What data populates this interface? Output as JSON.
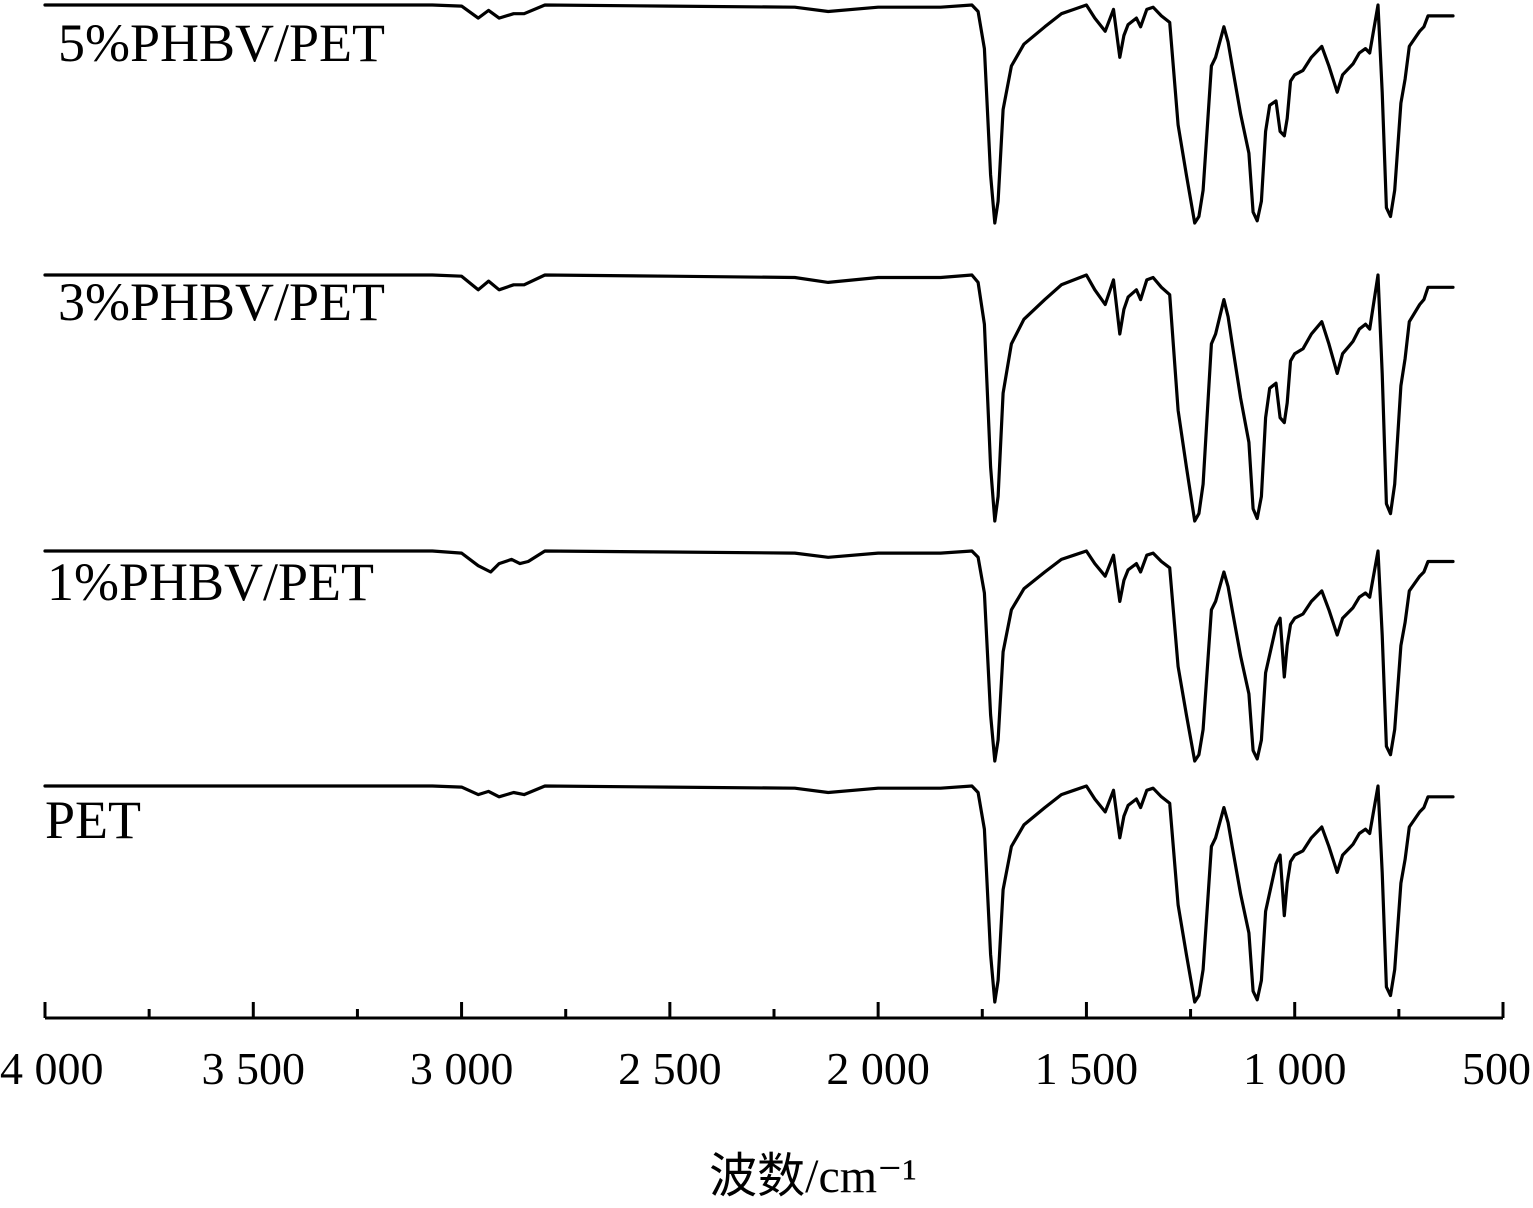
{
  "chart_data": {
    "type": "line",
    "title": "",
    "xlabel": "波数/cm⁻¹",
    "ylabel": "",
    "xlim": [
      4000,
      500
    ],
    "x_reversed": true,
    "y_axis_shown": false,
    "grid": false,
    "xticks": [
      4000,
      3500,
      3000,
      2500,
      2000,
      1500,
      1000,
      500
    ],
    "xtick_labels": [
      "4 000",
      "3 500",
      "3 000",
      "2 500",
      "2 000",
      "1 500",
      "1 000",
      "500"
    ],
    "series": [
      {
        "name": "5%PHBV/PET",
        "x": [
          4000,
          3500,
          3070,
          3000,
          2960,
          2935,
          2910,
          2875,
          2850,
          2800,
          2500,
          2200,
          2120,
          2000,
          1850,
          1775,
          1760,
          1745,
          1730,
          1720,
          1712,
          1700,
          1680,
          1650,
          1600,
          1560,
          1530,
          1500,
          1480,
          1455,
          1435,
          1420,
          1410,
          1400,
          1380,
          1370,
          1355,
          1340,
          1320,
          1300,
          1280,
          1260,
          1240,
          1230,
          1220,
          1200,
          1190,
          1170,
          1160,
          1150,
          1130,
          1110,
          1100,
          1090,
          1080,
          1070,
          1060,
          1045,
          1035,
          1025,
          1018,
          1010,
          1000,
          980,
          960,
          935,
          918,
          898,
          885,
          870,
          860,
          845,
          830,
          820,
          800,
          790,
          780,
          770,
          760,
          745,
          735,
          725,
          700,
          690,
          680,
          660,
          640,
          620
        ],
        "y": [
          0.0,
          0.0,
          0.0,
          -0.005,
          -0.06,
          -0.025,
          -0.06,
          -0.04,
          -0.04,
          0.0,
          -0.005,
          -0.01,
          -0.03,
          -0.01,
          -0.01,
          0.0,
          -0.03,
          -0.2,
          -0.78,
          -1.0,
          -0.9,
          -0.48,
          -0.28,
          -0.18,
          -0.1,
          -0.04,
          -0.02,
          0.0,
          -0.06,
          -0.12,
          -0.02,
          -0.24,
          -0.14,
          -0.09,
          -0.06,
          -0.1,
          -0.02,
          -0.01,
          -0.05,
          -0.08,
          -0.55,
          -0.78,
          -1.0,
          -0.97,
          -0.85,
          -0.28,
          -0.24,
          -0.1,
          -0.17,
          -0.28,
          -0.5,
          -0.68,
          -0.95,
          -0.99,
          -0.9,
          -0.58,
          -0.46,
          -0.44,
          -0.58,
          -0.6,
          -0.52,
          -0.35,
          -0.32,
          -0.3,
          -0.24,
          -0.19,
          -0.28,
          -0.4,
          -0.32,
          -0.29,
          -0.27,
          -0.22,
          -0.2,
          -0.22,
          -0.0,
          -0.4,
          -0.93,
          -0.97,
          -0.85,
          -0.45,
          -0.34,
          -0.19,
          -0.12,
          -0.1,
          -0.05,
          -0.05,
          -0.05,
          -0.05
        ]
      },
      {
        "name": "3%PHBV/PET",
        "x": [
          4000,
          3500,
          3070,
          3000,
          2960,
          2935,
          2910,
          2875,
          2850,
          2800,
          2500,
          2200,
          2120,
          2000,
          1850,
          1775,
          1760,
          1745,
          1730,
          1720,
          1712,
          1700,
          1680,
          1650,
          1600,
          1560,
          1530,
          1500,
          1480,
          1455,
          1435,
          1420,
          1410,
          1400,
          1380,
          1370,
          1355,
          1340,
          1320,
          1300,
          1280,
          1260,
          1240,
          1230,
          1220,
          1200,
          1190,
          1170,
          1160,
          1150,
          1130,
          1110,
          1100,
          1090,
          1080,
          1070,
          1060,
          1045,
          1035,
          1025,
          1018,
          1010,
          1000,
          980,
          960,
          935,
          918,
          898,
          885,
          870,
          860,
          845,
          830,
          820,
          800,
          790,
          780,
          770,
          760,
          745,
          735,
          725,
          700,
          690,
          680,
          660,
          640,
          620
        ],
        "y": [
          0.0,
          0.0,
          0.0,
          -0.005,
          -0.06,
          -0.025,
          -0.06,
          -0.04,
          -0.04,
          0.0,
          -0.005,
          -0.01,
          -0.03,
          -0.01,
          -0.01,
          0.0,
          -0.03,
          -0.2,
          -0.78,
          -1.0,
          -0.9,
          -0.48,
          -0.28,
          -0.18,
          -0.1,
          -0.04,
          -0.02,
          0.0,
          -0.06,
          -0.12,
          -0.02,
          -0.24,
          -0.14,
          -0.09,
          -0.06,
          -0.1,
          -0.02,
          -0.01,
          -0.05,
          -0.08,
          -0.55,
          -0.78,
          -1.0,
          -0.97,
          -0.85,
          -0.28,
          -0.24,
          -0.1,
          -0.17,
          -0.28,
          -0.5,
          -0.68,
          -0.95,
          -0.99,
          -0.9,
          -0.58,
          -0.46,
          -0.44,
          -0.58,
          -0.6,
          -0.52,
          -0.35,
          -0.32,
          -0.3,
          -0.24,
          -0.19,
          -0.28,
          -0.4,
          -0.32,
          -0.29,
          -0.27,
          -0.22,
          -0.2,
          -0.22,
          -0.0,
          -0.4,
          -0.93,
          -0.97,
          -0.85,
          -0.45,
          -0.34,
          -0.19,
          -0.12,
          -0.1,
          -0.05,
          -0.05,
          -0.05,
          -0.05
        ]
      },
      {
        "name": "1%PHBV/PET",
        "x": [
          4000,
          3500,
          3070,
          3000,
          2960,
          2930,
          2910,
          2880,
          2860,
          2840,
          2800,
          2500,
          2200,
          2120,
          2000,
          1850,
          1775,
          1760,
          1745,
          1730,
          1720,
          1712,
          1700,
          1680,
          1650,
          1600,
          1560,
          1530,
          1500,
          1480,
          1455,
          1435,
          1420,
          1410,
          1400,
          1380,
          1370,
          1355,
          1340,
          1320,
          1300,
          1280,
          1260,
          1240,
          1230,
          1220,
          1200,
          1190,
          1170,
          1160,
          1150,
          1130,
          1110,
          1100,
          1090,
          1080,
          1070,
          1045,
          1035,
          1025,
          1018,
          1010,
          1000,
          980,
          960,
          935,
          918,
          898,
          885,
          870,
          860,
          845,
          830,
          820,
          800,
          790,
          780,
          770,
          760,
          745,
          735,
          725,
          700,
          690,
          680,
          660,
          640,
          620
        ],
        "y": [
          0.0,
          0.0,
          0.0,
          -0.01,
          -0.07,
          -0.1,
          -0.06,
          -0.04,
          -0.06,
          -0.05,
          0.0,
          -0.005,
          -0.01,
          -0.03,
          -0.01,
          -0.01,
          0.0,
          -0.03,
          -0.2,
          -0.78,
          -1.0,
          -0.9,
          -0.48,
          -0.28,
          -0.18,
          -0.1,
          -0.04,
          -0.02,
          0.0,
          -0.06,
          -0.12,
          -0.02,
          -0.24,
          -0.14,
          -0.09,
          -0.06,
          -0.1,
          -0.02,
          -0.01,
          -0.05,
          -0.08,
          -0.55,
          -0.78,
          -1.0,
          -0.97,
          -0.85,
          -0.28,
          -0.24,
          -0.1,
          -0.17,
          -0.28,
          -0.5,
          -0.68,
          -0.95,
          -0.99,
          -0.9,
          -0.58,
          -0.36,
          -0.32,
          -0.6,
          -0.45,
          -0.35,
          -0.32,
          -0.3,
          -0.24,
          -0.19,
          -0.28,
          -0.4,
          -0.32,
          -0.29,
          -0.27,
          -0.22,
          -0.2,
          -0.22,
          -0.0,
          -0.4,
          -0.93,
          -0.97,
          -0.85,
          -0.45,
          -0.34,
          -0.19,
          -0.12,
          -0.1,
          -0.05,
          -0.05,
          -0.05,
          -0.05
        ]
      },
      {
        "name": "PET",
        "x": [
          4000,
          3500,
          3070,
          3000,
          2960,
          2935,
          2910,
          2875,
          2850,
          2800,
          2500,
          2200,
          2120,
          2000,
          1850,
          1775,
          1760,
          1745,
          1730,
          1720,
          1712,
          1700,
          1680,
          1650,
          1600,
          1560,
          1530,
          1500,
          1480,
          1455,
          1435,
          1420,
          1410,
          1400,
          1380,
          1370,
          1355,
          1340,
          1320,
          1300,
          1280,
          1260,
          1240,
          1230,
          1220,
          1200,
          1190,
          1170,
          1160,
          1150,
          1130,
          1110,
          1100,
          1090,
          1080,
          1070,
          1045,
          1035,
          1025,
          1018,
          1010,
          1000,
          980,
          960,
          935,
          918,
          898,
          885,
          870,
          860,
          845,
          830,
          820,
          800,
          790,
          780,
          770,
          760,
          745,
          735,
          725,
          700,
          690,
          680,
          660,
          640,
          620
        ],
        "y": [
          0.0,
          0.0,
          0.0,
          -0.005,
          -0.04,
          -0.025,
          -0.05,
          -0.03,
          -0.04,
          0.0,
          -0.005,
          -0.01,
          -0.03,
          -0.01,
          -0.01,
          0.0,
          -0.03,
          -0.2,
          -0.78,
          -1.0,
          -0.9,
          -0.48,
          -0.28,
          -0.18,
          -0.1,
          -0.04,
          -0.02,
          0.0,
          -0.06,
          -0.12,
          -0.02,
          -0.24,
          -0.14,
          -0.09,
          -0.06,
          -0.1,
          -0.02,
          -0.01,
          -0.05,
          -0.08,
          -0.55,
          -0.78,
          -1.0,
          -0.97,
          -0.85,
          -0.28,
          -0.24,
          -0.1,
          -0.17,
          -0.28,
          -0.5,
          -0.68,
          -0.95,
          -0.99,
          -0.9,
          -0.58,
          -0.36,
          -0.32,
          -0.6,
          -0.45,
          -0.35,
          -0.32,
          -0.3,
          -0.24,
          -0.19,
          -0.28,
          -0.4,
          -0.32,
          -0.29,
          -0.27,
          -0.22,
          -0.2,
          -0.22,
          -0.0,
          -0.4,
          -0.93,
          -0.97,
          -0.85,
          -0.45,
          -0.34,
          -0.19,
          -0.12,
          -0.1,
          -0.05,
          -0.05,
          -0.05,
          -0.05
        ]
      }
    ]
  }
}
